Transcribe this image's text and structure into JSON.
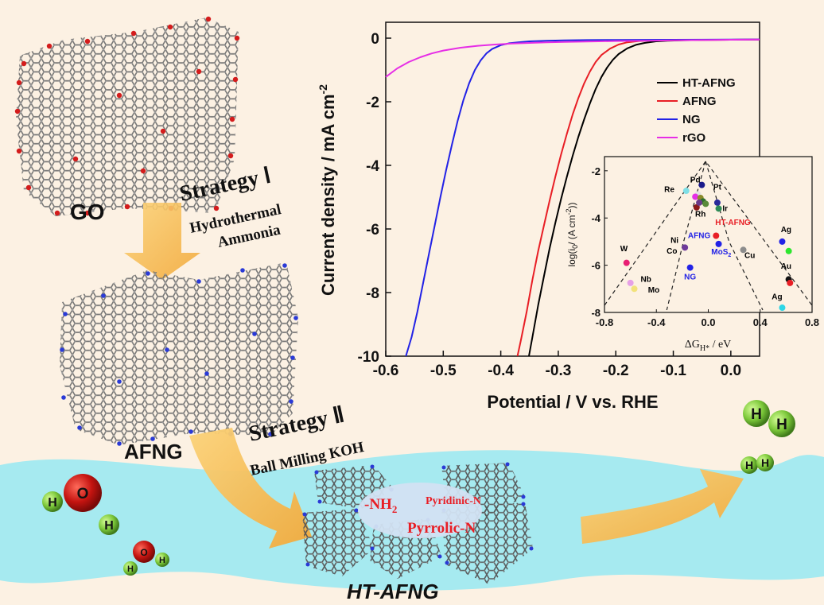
{
  "stages": {
    "go": {
      "label": "GO"
    },
    "afng": {
      "label": "AFNG"
    },
    "ht_afng": {
      "label": "HT-AFNG"
    }
  },
  "strategy1": {
    "title": "Strategy Ⅰ",
    "line1": "Hydrothermal",
    "line2": "Ammonia"
  },
  "strategy2": {
    "title": "Strategy Ⅱ",
    "line1": "Ball Milling KOH"
  },
  "nitrogen_species": {
    "nh2": "-NH",
    "nh2_sub": "2",
    "pyridinic": "Pyridinic-N",
    "pyrrolic": "Pyrrolic-N"
  },
  "molecules": {
    "water_h": "H",
    "water_o": "O",
    "hydrogen_h": "H"
  },
  "colors": {
    "background": "#fcf1e3",
    "water": "#a6eaf0",
    "arrow": "#f6c05a",
    "ht_afng": "#000000",
    "afng": "#e81e25",
    "ng": "#2222e6",
    "rgo": "#e62ee6",
    "label_red": "#e81e25"
  },
  "chart_data": [
    {
      "type": "line",
      "xlabel": "Potential / V vs. RHE",
      "ylabel": "Current density / mA cm",
      "ylabel_sup": "-2",
      "xlim": [
        -0.6,
        0.05
      ],
      "ylim": [
        -10,
        0.5
      ],
      "xticks": [
        -0.6,
        -0.5,
        -0.4,
        -0.3,
        -0.2,
        -0.1,
        0.0
      ],
      "xtick_labels": [
        "-0.6",
        "-0.5",
        "-0.4",
        "-0.3",
        "-0.2",
        "-0.1",
        "0.0"
      ],
      "yticks": [
        0,
        -2,
        -4,
        -6,
        -8,
        -10
      ],
      "ytick_labels": [
        "0",
        "-2",
        "-4",
        "-6",
        "-8",
        "-10"
      ],
      "legend_position": "top-right",
      "series": [
        {
          "name": "HT-AFNG",
          "color": "#000000",
          "x": [
            -0.351,
            -0.345,
            -0.335,
            -0.325,
            -0.315,
            -0.305,
            -0.295,
            -0.285,
            -0.275,
            -0.265,
            -0.255,
            -0.245,
            -0.235,
            -0.225,
            -0.215,
            -0.205,
            -0.195,
            -0.18,
            -0.165,
            -0.15,
            -0.13,
            -0.11,
            -0.08,
            -0.05,
            0.0,
            0.05
          ],
          "y": [
            -10.0,
            -9.4,
            -8.4,
            -7.5,
            -6.6,
            -5.8,
            -5.05,
            -4.35,
            -3.7,
            -3.1,
            -2.55,
            -2.05,
            -1.6,
            -1.22,
            -0.92,
            -0.68,
            -0.5,
            -0.32,
            -0.21,
            -0.15,
            -0.1,
            -0.08,
            -0.065,
            -0.055,
            -0.05,
            -0.045
          ]
        },
        {
          "name": "AFNG",
          "color": "#e81e25",
          "x": [
            -0.371,
            -0.365,
            -0.355,
            -0.345,
            -0.335,
            -0.325,
            -0.315,
            -0.305,
            -0.295,
            -0.285,
            -0.275,
            -0.265,
            -0.255,
            -0.245,
            -0.235,
            -0.225,
            -0.21,
            -0.195,
            -0.18,
            -0.16,
            -0.14,
            -0.11,
            -0.08,
            -0.04,
            0.0,
            0.05
          ],
          "y": [
            -10.0,
            -9.5,
            -8.6,
            -7.6,
            -6.7,
            -5.9,
            -5.1,
            -4.35,
            -3.65,
            -3.0,
            -2.4,
            -1.88,
            -1.42,
            -1.05,
            -0.75,
            -0.53,
            -0.33,
            -0.2,
            -0.13,
            -0.09,
            -0.075,
            -0.065,
            -0.06,
            -0.055,
            -0.05,
            -0.045
          ]
        },
        {
          "name": "NG",
          "color": "#2222e6",
          "x": [
            -0.565,
            -0.555,
            -0.545,
            -0.535,
            -0.525,
            -0.515,
            -0.505,
            -0.495,
            -0.485,
            -0.475,
            -0.465,
            -0.455,
            -0.445,
            -0.435,
            -0.425,
            -0.415,
            -0.4,
            -0.385,
            -0.37,
            -0.35,
            -0.32,
            -0.29,
            -0.25,
            -0.2,
            -0.1,
            0.0,
            0.05
          ],
          "y": [
            -10.0,
            -9.4,
            -8.6,
            -7.7,
            -6.8,
            -5.9,
            -5.0,
            -4.15,
            -3.35,
            -2.6,
            -1.95,
            -1.42,
            -1.0,
            -0.7,
            -0.48,
            -0.34,
            -0.22,
            -0.16,
            -0.13,
            -0.1,
            -0.08,
            -0.07,
            -0.06,
            -0.055,
            -0.05,
            -0.045,
            -0.04
          ]
        },
        {
          "name": "rGO",
          "color": "#e62ee6",
          "x": [
            -0.6,
            -0.58,
            -0.56,
            -0.54,
            -0.52,
            -0.5,
            -0.47,
            -0.44,
            -0.41,
            -0.38,
            -0.35,
            -0.32,
            -0.29,
            -0.26,
            -0.23,
            -0.2,
            -0.15,
            -0.1,
            -0.05,
            0.0,
            0.05
          ],
          "y": [
            -1.22,
            -0.95,
            -0.75,
            -0.6,
            -0.48,
            -0.39,
            -0.3,
            -0.24,
            -0.2,
            -0.17,
            -0.15,
            -0.13,
            -0.12,
            -0.11,
            -0.1,
            -0.09,
            -0.08,
            -0.07,
            -0.06,
            -0.05,
            -0.045
          ]
        }
      ]
    },
    {
      "type": "scatter",
      "xlabel": "ΔG",
      "xlabel_sub": "H*",
      "xlabel_unit": " / eV",
      "ylabel": "log(i",
      "ylabel_sub": "0",
      "ylabel_unit": "/ (A cm",
      "ylabel_sup": "-2",
      "ylabel_end": "))",
      "xlim": [
        -0.8,
        0.8
      ],
      "ylim": [
        -8,
        -1.4
      ],
      "xticks": [
        -0.8,
        -0.4,
        0.0,
        0.4,
        0.8
      ],
      "xtick_labels": [
        "-0.8",
        "-0.4",
        "0.0",
        "0.4",
        "0.8"
      ],
      "yticks": [
        -2,
        -4,
        -6,
        -8
      ],
      "ytick_labels": [
        "-2",
        "-4",
        "-6",
        "-8"
      ],
      "guides": {
        "volcano": [
          [
            -0.8,
            -7.7
          ],
          [
            -0.02,
            -1.6
          ],
          [
            0.8,
            -7.7
          ]
        ],
        "inner_left": [
          [
            -0.02,
            -1.6
          ],
          [
            -0.2,
            -5.2
          ],
          [
            -0.32,
            -7.9
          ]
        ],
        "inner_right": [
          [
            -0.02,
            -1.6
          ],
          [
            0.16,
            -5.0
          ],
          [
            0.42,
            -7.9
          ]
        ]
      },
      "points": [
        {
          "x": -0.05,
          "y": -2.6,
          "color": "#1a1a8a"
        },
        {
          "x": 0.07,
          "y": -3.35,
          "color": "#2a2a9a"
        },
        {
          "x": 0.08,
          "y": -3.6,
          "color": "#2e8b57"
        },
        {
          "x": -0.17,
          "y": -2.85,
          "color": "#7fdfe6"
        },
        {
          "x": -0.08,
          "y": -3.0,
          "color": "#e2e2e2"
        },
        {
          "x": -0.1,
          "y": -3.1,
          "color": "#e62ee6"
        },
        {
          "x": -0.06,
          "y": -3.15,
          "color": "#8a8a2a"
        },
        {
          "x": -0.04,
          "y": -3.3,
          "color": "#2e6e2e"
        },
        {
          "x": -0.02,
          "y": -3.4,
          "color": "#5a8a3a"
        },
        {
          "x": -0.09,
          "y": -3.55,
          "color": "#8b1a1a"
        },
        {
          "x": -0.07,
          "y": -3.35,
          "color": "#6b3a8a"
        },
        {
          "x": 0.06,
          "y": -4.75,
          "color": "#e81e25"
        },
        {
          "x": 0.08,
          "y": -5.1,
          "color": "#2222e6"
        },
        {
          "x": -0.18,
          "y": -5.25,
          "color": "#6e3a9a"
        },
        {
          "x": -0.14,
          "y": -6.1,
          "color": "#2222e6"
        },
        {
          "x": 0.27,
          "y": -5.35,
          "color": "#8c8c8c"
        },
        {
          "x": -0.63,
          "y": -5.9,
          "color": "#e81e73"
        },
        {
          "x": -0.6,
          "y": -6.75,
          "color": "#e6a0e6"
        },
        {
          "x": -0.57,
          "y": -7.0,
          "color": "#f2e27a"
        },
        {
          "x": 0.57,
          "y": -5.0,
          "color": "#2222e6"
        },
        {
          "x": 0.62,
          "y": -5.4,
          "color": "#2ee62e"
        },
        {
          "x": 0.62,
          "y": -6.6,
          "color": "#111111"
        },
        {
          "x": 0.63,
          "y": -6.75,
          "color": "#e81e25"
        },
        {
          "x": 0.57,
          "y": -7.8,
          "color": "#2ed6e6"
        }
      ],
      "labels": [
        {
          "text": "Pd",
          "x": -0.1,
          "y": -2.5,
          "color": "#000000"
        },
        {
          "text": "Pt",
          "x": 0.07,
          "y": -2.8,
          "color": "#000000"
        },
        {
          "text": "Re",
          "x": -0.3,
          "y": -2.9,
          "color": "#000000"
        },
        {
          "text": "Ir",
          "x": 0.13,
          "y": -3.7,
          "color": "#000000"
        },
        {
          "text": "Rh",
          "x": -0.06,
          "y": -3.95,
          "color": "#000000"
        },
        {
          "text": "HT-AFNG",
          "x": 0.19,
          "y": -4.3,
          "color": "#e81e25"
        },
        {
          "text": "AFNG",
          "x": -0.07,
          "y": -4.85,
          "color": "#2222e6"
        },
        {
          "text": "MoS",
          "sub": "2",
          "x": 0.1,
          "y": -5.55,
          "color": "#2222e6"
        },
        {
          "text": "Ni",
          "x": -0.26,
          "y": -5.05,
          "color": "#000000"
        },
        {
          "text": "Co",
          "x": -0.28,
          "y": -5.5,
          "color": "#000000"
        },
        {
          "text": "W",
          "x": -0.65,
          "y": -5.4,
          "color": "#000000"
        },
        {
          "text": "Nb",
          "x": -0.48,
          "y": -6.7,
          "color": "#000000"
        },
        {
          "text": "Mo",
          "x": -0.42,
          "y": -7.15,
          "color": "#000000"
        },
        {
          "text": "NG",
          "x": -0.14,
          "y": -6.6,
          "color": "#2222e6"
        },
        {
          "text": "Cu",
          "x": 0.32,
          "y": -5.7,
          "color": "#000000"
        },
        {
          "text": "Ag",
          "x": 0.6,
          "y": -4.6,
          "color": "#000000"
        },
        {
          "text": "Au",
          "x": 0.6,
          "y": -6.15,
          "color": "#000000"
        },
        {
          "text": "Ag",
          "x": 0.53,
          "y": -7.45,
          "color": "#000000"
        }
      ]
    }
  ]
}
